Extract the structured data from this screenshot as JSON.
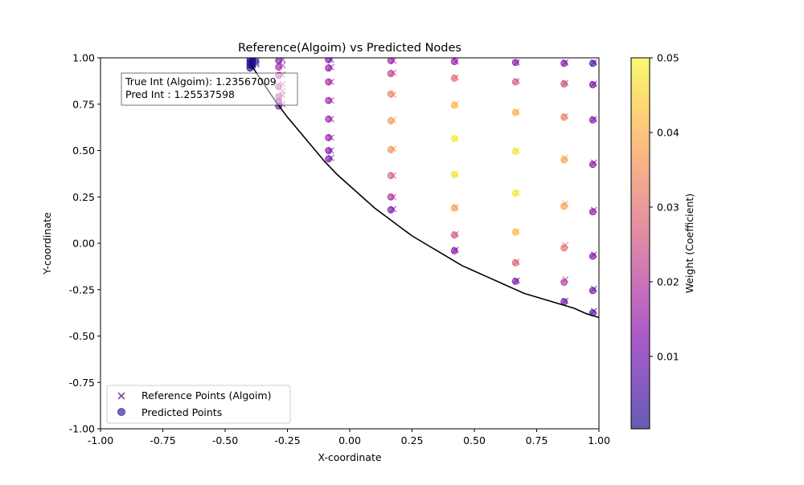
{
  "chart_data": {
    "type": "scatter",
    "title": "Reference(Algoim) vs Predicted Nodes",
    "xlabel": "X-coordinate",
    "ylabel": "Y-coordinate",
    "xlim": [
      -1.0,
      1.0
    ],
    "ylim": [
      -1.0,
      1.0
    ],
    "x_ticks": [
      "-1.00",
      "-0.75",
      "-0.50",
      "-0.25",
      "0.00",
      "0.25",
      "0.50",
      "0.75",
      "1.00"
    ],
    "y_ticks": [
      "-1.00",
      "-0.75",
      "-0.50",
      "-0.25",
      "0.00",
      "0.25",
      "0.50",
      "0.75",
      "1.00"
    ],
    "grid": false,
    "legend_position": "lower-left",
    "legend": [
      {
        "label": "Reference Points (Algoim)",
        "marker": "x"
      },
      {
        "label": "Predicted Points",
        "marker": "o"
      }
    ],
    "annotation": {
      "line1": "True Int (Algoim): 1.23567009",
      "line2": "Pred Int : 1.25537598"
    },
    "colorbar": {
      "label": "Weight (Coefficient)",
      "range": [
        0.0003,
        0.05
      ],
      "ticks": [
        "0.01",
        "0.02",
        "0.03",
        "0.04",
        "0.05"
      ],
      "tick_values": [
        0.01,
        0.02,
        0.03,
        0.04,
        0.05
      ],
      "colormap": "plasma"
    },
    "boundary_curve": {
      "color": "#000000",
      "x": [
        -0.395,
        -0.35,
        -0.3,
        -0.25,
        -0.2,
        -0.15,
        -0.1,
        -0.05,
        0.0,
        0.05,
        0.1,
        0.15,
        0.2,
        0.25,
        0.3,
        0.35,
        0.4,
        0.45,
        0.5,
        0.55,
        0.6,
        0.65,
        0.7,
        0.75,
        0.8,
        0.85,
        0.9,
        0.95,
        1.0
      ],
      "y": [
        0.96,
        0.87,
        0.77,
        0.68,
        0.6,
        0.52,
        0.44,
        0.37,
        0.31,
        0.25,
        0.19,
        0.14,
        0.09,
        0.04,
        0.0,
        -0.04,
        -0.08,
        -0.12,
        -0.15,
        -0.18,
        -0.21,
        -0.24,
        -0.27,
        -0.29,
        -0.31,
        -0.33,
        -0.35,
        -0.38,
        -0.4
      ]
    },
    "series": [
      {
        "name": "Reference Points (Algoim)",
        "marker": "x",
        "points": [
          [
            -0.39,
            0.995,
            0.003
          ],
          [
            -0.39,
            0.985,
            0.003
          ],
          [
            -0.39,
            0.975,
            0.003
          ],
          [
            -0.39,
            0.965,
            0.003
          ],
          [
            -0.375,
            0.995,
            0.003
          ],
          [
            -0.375,
            0.985,
            0.003
          ],
          [
            -0.375,
            0.975,
            0.003
          ],
          [
            -0.375,
            0.965,
            0.003
          ],
          [
            -0.27,
            0.99,
            0.012
          ],
          [
            -0.27,
            0.96,
            0.017
          ],
          [
            -0.27,
            0.91,
            0.021
          ],
          [
            -0.27,
            0.86,
            0.022
          ],
          [
            -0.27,
            0.82,
            0.022
          ],
          [
            -0.27,
            0.8,
            0.02
          ],
          [
            -0.27,
            0.75,
            0.012
          ],
          [
            -0.075,
            0.99,
            0.012
          ],
          [
            -0.075,
            0.95,
            0.014
          ],
          [
            -0.075,
            0.87,
            0.017
          ],
          [
            -0.075,
            0.77,
            0.017
          ],
          [
            -0.075,
            0.67,
            0.016
          ],
          [
            -0.075,
            0.57,
            0.015
          ],
          [
            -0.075,
            0.5,
            0.013
          ],
          [
            -0.075,
            0.46,
            0.01
          ],
          [
            0.175,
            0.985,
            0.016
          ],
          [
            0.175,
            0.92,
            0.022
          ],
          [
            0.175,
            0.8,
            0.034
          ],
          [
            0.175,
            0.665,
            0.038
          ],
          [
            0.175,
            0.51,
            0.036
          ],
          [
            0.175,
            0.365,
            0.029
          ],
          [
            0.175,
            0.25,
            0.02
          ],
          [
            0.175,
            0.185,
            0.012
          ],
          [
            0.425,
            0.98,
            0.015
          ],
          [
            0.425,
            0.895,
            0.03
          ],
          [
            0.425,
            0.75,
            0.042
          ],
          [
            0.425,
            0.565,
            0.048
          ],
          [
            0.425,
            0.375,
            0.047
          ],
          [
            0.425,
            0.195,
            0.038
          ],
          [
            0.425,
            0.05,
            0.027
          ],
          [
            0.425,
            -0.035,
            0.013
          ],
          [
            0.67,
            0.975,
            0.014
          ],
          [
            0.67,
            0.875,
            0.027
          ],
          [
            0.67,
            0.71,
            0.04
          ],
          [
            0.67,
            0.5,
            0.047
          ],
          [
            0.67,
            0.275,
            0.048
          ],
          [
            0.67,
            0.065,
            0.042
          ],
          [
            0.67,
            -0.1,
            0.028
          ],
          [
            0.67,
            -0.2,
            0.012
          ],
          [
            0.865,
            0.975,
            0.012
          ],
          [
            0.865,
            0.865,
            0.024
          ],
          [
            0.865,
            0.685,
            0.033
          ],
          [
            0.865,
            0.46,
            0.039
          ],
          [
            0.865,
            0.215,
            0.038
          ],
          [
            0.865,
            -0.01,
            0.03
          ],
          [
            0.865,
            -0.195,
            0.02
          ],
          [
            0.865,
            -0.31,
            0.01
          ],
          [
            0.98,
            0.975,
            0.006
          ],
          [
            0.98,
            0.86,
            0.011
          ],
          [
            0.98,
            0.67,
            0.013
          ],
          [
            0.98,
            0.435,
            0.014
          ],
          [
            0.98,
            0.18,
            0.014
          ],
          [
            0.98,
            -0.06,
            0.012
          ],
          [
            0.98,
            -0.245,
            0.009
          ],
          [
            0.98,
            -0.365,
            0.006
          ]
        ]
      },
      {
        "name": "Predicted Points",
        "marker": "o",
        "points": [
          [
            -0.4,
            0.99,
            0.002
          ],
          [
            -0.4,
            0.975,
            0.002
          ],
          [
            -0.4,
            0.96,
            0.002
          ],
          [
            -0.4,
            0.945,
            0.002
          ],
          [
            -0.39,
            0.99,
            0.003
          ],
          [
            -0.39,
            0.97,
            0.003
          ],
          [
            -0.39,
            0.955,
            0.003
          ],
          [
            -0.285,
            0.985,
            0.012
          ],
          [
            -0.285,
            0.95,
            0.016
          ],
          [
            -0.285,
            0.905,
            0.02
          ],
          [
            -0.285,
            0.845,
            0.021
          ],
          [
            -0.285,
            0.79,
            0.02
          ],
          [
            -0.285,
            0.765,
            0.016
          ],
          [
            -0.285,
            0.74,
            0.01
          ],
          [
            -0.085,
            0.99,
            0.012
          ],
          [
            -0.085,
            0.945,
            0.014
          ],
          [
            -0.085,
            0.87,
            0.017
          ],
          [
            -0.085,
            0.77,
            0.017
          ],
          [
            -0.085,
            0.67,
            0.016
          ],
          [
            -0.085,
            0.57,
            0.015
          ],
          [
            -0.085,
            0.5,
            0.013
          ],
          [
            -0.085,
            0.455,
            0.01
          ],
          [
            0.165,
            0.985,
            0.016
          ],
          [
            0.165,
            0.915,
            0.022
          ],
          [
            0.165,
            0.805,
            0.033
          ],
          [
            0.165,
            0.66,
            0.037
          ],
          [
            0.165,
            0.505,
            0.036
          ],
          [
            0.165,
            0.365,
            0.028
          ],
          [
            0.165,
            0.25,
            0.019
          ],
          [
            0.165,
            0.18,
            0.011
          ],
          [
            0.42,
            0.98,
            0.015
          ],
          [
            0.42,
            0.89,
            0.03
          ],
          [
            0.42,
            0.745,
            0.041
          ],
          [
            0.42,
            0.565,
            0.048
          ],
          [
            0.42,
            0.37,
            0.047
          ],
          [
            0.42,
            0.19,
            0.038
          ],
          [
            0.42,
            0.045,
            0.027
          ],
          [
            0.42,
            -0.04,
            0.013
          ],
          [
            0.665,
            0.975,
            0.014
          ],
          [
            0.665,
            0.87,
            0.027
          ],
          [
            0.665,
            0.705,
            0.04
          ],
          [
            0.665,
            0.495,
            0.047
          ],
          [
            0.665,
            0.27,
            0.048
          ],
          [
            0.665,
            0.06,
            0.042
          ],
          [
            0.665,
            -0.105,
            0.028
          ],
          [
            0.665,
            -0.205,
            0.012
          ],
          [
            0.86,
            0.97,
            0.012
          ],
          [
            0.86,
            0.86,
            0.024
          ],
          [
            0.86,
            0.68,
            0.033
          ],
          [
            0.86,
            0.45,
            0.039
          ],
          [
            0.86,
            0.2,
            0.038
          ],
          [
            0.86,
            -0.025,
            0.03
          ],
          [
            0.86,
            -0.21,
            0.02
          ],
          [
            0.86,
            -0.315,
            0.01
          ],
          [
            0.975,
            0.97,
            0.006
          ],
          [
            0.975,
            0.855,
            0.011
          ],
          [
            0.975,
            0.665,
            0.013
          ],
          [
            0.975,
            0.425,
            0.014
          ],
          [
            0.975,
            0.17,
            0.014
          ],
          [
            0.975,
            -0.07,
            0.012
          ],
          [
            0.975,
            -0.255,
            0.009
          ],
          [
            0.975,
            -0.375,
            0.006
          ]
        ]
      }
    ]
  }
}
